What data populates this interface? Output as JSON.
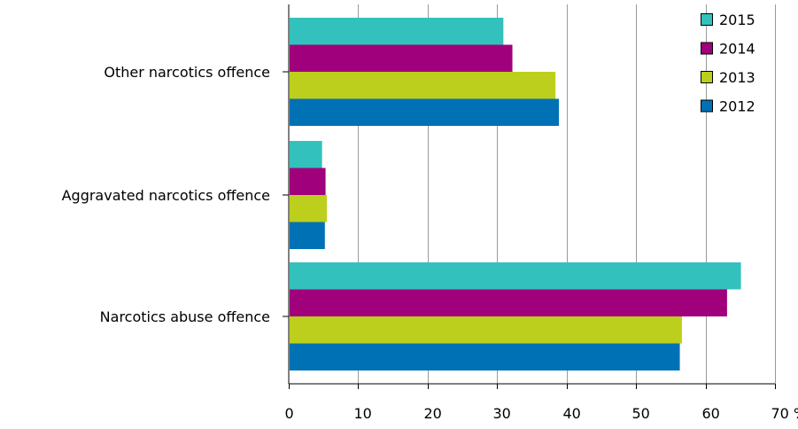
{
  "chart_data": {
    "type": "bar",
    "orientation": "horizontal",
    "title": "",
    "xlabel": "",
    "ylabel": "",
    "categories": [
      "Other narcotics offence",
      "Aggravated narcotics offence",
      "Narcotics abuse offence"
    ],
    "series": [
      {
        "name": "2015",
        "color": "#33c1bd",
        "values": [
          30.9,
          4.8,
          65.1
        ]
      },
      {
        "name": "2014",
        "color": "#a0007b",
        "values": [
          32.2,
          5.3,
          63.1
        ]
      },
      {
        "name": "2013",
        "color": "#bccf1c",
        "values": [
          38.4,
          5.5,
          56.6
        ]
      },
      {
        "name": "2012",
        "color": "#0071b5",
        "values": [
          38.9,
          5.2,
          56.3
        ]
      }
    ],
    "xlim": [
      0,
      70
    ],
    "x_ticks": [
      0,
      10,
      20,
      30,
      40,
      50,
      60,
      70
    ],
    "x_tick_labels": [
      "0",
      "10",
      "20",
      "30",
      "40",
      "50",
      "60",
      "70 %"
    ],
    "grid": "vertical",
    "legend_position": "top-right"
  }
}
